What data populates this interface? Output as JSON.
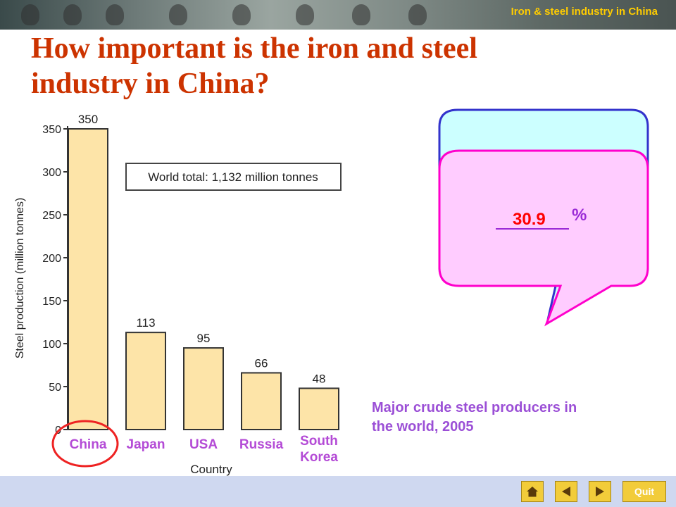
{
  "header": {
    "section_title": "Iron & steel industry in China"
  },
  "title": "How important is the iron and steel industry in China?",
  "chart_data": {
    "type": "bar",
    "categories": [
      "China",
      "Japan",
      "USA",
      "Russia",
      "South Korea"
    ],
    "values": [
      350,
      113,
      95,
      66,
      48
    ],
    "category_lines": [
      [
        "China"
      ],
      [
        "Japan"
      ],
      [
        "USA"
      ],
      [
        "Russia"
      ],
      [
        "South",
        "Korea"
      ]
    ],
    "title": "",
    "xlabel": "Country",
    "ylabel": "Steel production (million tonnes)",
    "ylim": [
      0,
      350
    ],
    "yticks": [
      0,
      50,
      100,
      150,
      200,
      250,
      300,
      350
    ],
    "annotation": "World total: 1,132 million tonnes",
    "grid": false,
    "highlight_category": "China",
    "colors": {
      "bar": "#fde4a8",
      "bar_edge": "#333333",
      "category_label": "#b44bd6",
      "highlight_circle": "#ee2222"
    }
  },
  "caption": "Major crude steel producers in the world, 2005",
  "answer": {
    "value": "30.9",
    "unit": "%"
  },
  "bubbles": {
    "back_fill": "#ccffff",
    "back_border": "#3333cc",
    "front_fill": "#ffccff",
    "front_border": "#ff00cc"
  },
  "navigation": {
    "home_icon": "home-icon",
    "prev_icon": "triangle-left-icon",
    "next_icon": "triangle-right-icon",
    "quit_label": "Quit"
  }
}
